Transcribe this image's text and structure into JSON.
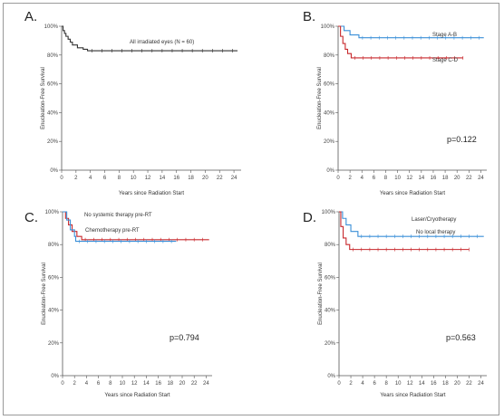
{
  "colors": {
    "black": "#333333",
    "blue": "#3a8fd8",
    "red": "#c8282c",
    "axis": "#555555"
  },
  "chart_data": [
    {
      "panel": "A.",
      "type": "line",
      "xlabel": "Years since Radiation Start",
      "ylabel": "Enucleation-Free Survival",
      "xlim": [
        0,
        25
      ],
      "ylim": [
        0,
        100
      ],
      "xticks": [
        0,
        2,
        4,
        6,
        8,
        10,
        12,
        14,
        16,
        18,
        20,
        22,
        24
      ],
      "yticks": [
        "0%",
        "20%",
        "40%",
        "60%",
        "80%",
        "100%"
      ],
      "p_value": "",
      "series": [
        {
          "name": "All irradiated eyes (N = 60)",
          "color": "#333333",
          "steps": [
            [
              0,
              100
            ],
            [
              0.2,
              97
            ],
            [
              0.4,
              95
            ],
            [
              0.6,
              93
            ],
            [
              0.9,
              91
            ],
            [
              1.2,
              89
            ],
            [
              1.5,
              87
            ],
            [
              2.2,
              85
            ],
            [
              3,
              84
            ],
            [
              3.6,
              83
            ],
            [
              24.5,
              83
            ]
          ]
        }
      ]
    },
    {
      "panel": "B.",
      "type": "line",
      "xlabel": "Years since Radiation Start",
      "ylabel": "Enucleation-Free Survival",
      "xlim": [
        0,
        25
      ],
      "ylim": [
        0,
        100
      ],
      "xticks": [
        0,
        2,
        4,
        6,
        8,
        10,
        12,
        14,
        16,
        18,
        20,
        22,
        24
      ],
      "yticks": [
        "0%",
        "20%",
        "40%",
        "60%",
        "80%",
        "100%"
      ],
      "p_value": "p=0.122",
      "series": [
        {
          "name": "Stage A-B",
          "color": "#3a8fd8",
          "steps": [
            [
              0,
              100
            ],
            [
              1,
              97
            ],
            [
              2,
              94
            ],
            [
              3.5,
              92
            ],
            [
              24.5,
              92
            ]
          ]
        },
        {
          "name": "Stage C-D",
          "color": "#c8282c",
          "steps": [
            [
              0,
              100
            ],
            [
              0.4,
              93
            ],
            [
              0.8,
              88
            ],
            [
              1.2,
              84
            ],
            [
              1.6,
              81
            ],
            [
              2.2,
              78
            ],
            [
              21,
              78
            ]
          ]
        }
      ]
    },
    {
      "panel": "C.",
      "type": "line",
      "xlabel": "Years since Radiation Start",
      "ylabel": "Enucleation-Free Survival",
      "xlim": [
        0,
        25
      ],
      "ylim": [
        0,
        100
      ],
      "xticks": [
        0,
        2,
        4,
        6,
        8,
        10,
        12,
        14,
        16,
        18,
        20,
        22,
        24
      ],
      "yticks": [
        "0%",
        "20%",
        "40%",
        "60%",
        "80%",
        "100%"
      ],
      "p_value": "p=0.794",
      "series": [
        {
          "name": "No systemic therapy pre-RT",
          "color": "#c8282c",
          "steps": [
            [
              0,
              100
            ],
            [
              0.5,
              96
            ],
            [
              1,
              92
            ],
            [
              1.6,
              88
            ],
            [
              2.4,
              85
            ],
            [
              3.2,
              83
            ],
            [
              24.5,
              83
            ]
          ]
        },
        {
          "name": "Chemotherapy pre-RT",
          "color": "#3a8fd8",
          "steps": [
            [
              0,
              100
            ],
            [
              0.7,
              95
            ],
            [
              1.3,
              89
            ],
            [
              2,
              85
            ],
            [
              2.2,
              82
            ],
            [
              19,
              82
            ]
          ]
        }
      ]
    },
    {
      "panel": "D.",
      "type": "line",
      "xlabel": "Years since Radiation Start",
      "ylabel": "Enucleation-Free Survival",
      "xlim": [
        0,
        25
      ],
      "ylim": [
        0,
        100
      ],
      "xticks": [
        0,
        2,
        4,
        6,
        8,
        10,
        12,
        14,
        16,
        18,
        20,
        22,
        24
      ],
      "yticks": [
        "0%",
        "20%",
        "40%",
        "60%",
        "80%",
        "100%"
      ],
      "p_value": "p=0.563",
      "series": [
        {
          "name": "Laser/Cryotherapy",
          "color": "#3a8fd8",
          "steps": [
            [
              0,
              100
            ],
            [
              0.6,
              96
            ],
            [
              1.2,
              92
            ],
            [
              2,
              88
            ],
            [
              3.2,
              85
            ],
            [
              24.5,
              85
            ]
          ]
        },
        {
          "name": "No local therapy",
          "color": "#c8282c",
          "steps": [
            [
              0,
              100
            ],
            [
              0.3,
              91
            ],
            [
              0.7,
              84
            ],
            [
              1.2,
              80
            ],
            [
              1.8,
              77
            ],
            [
              22,
              77
            ]
          ]
        }
      ]
    }
  ]
}
